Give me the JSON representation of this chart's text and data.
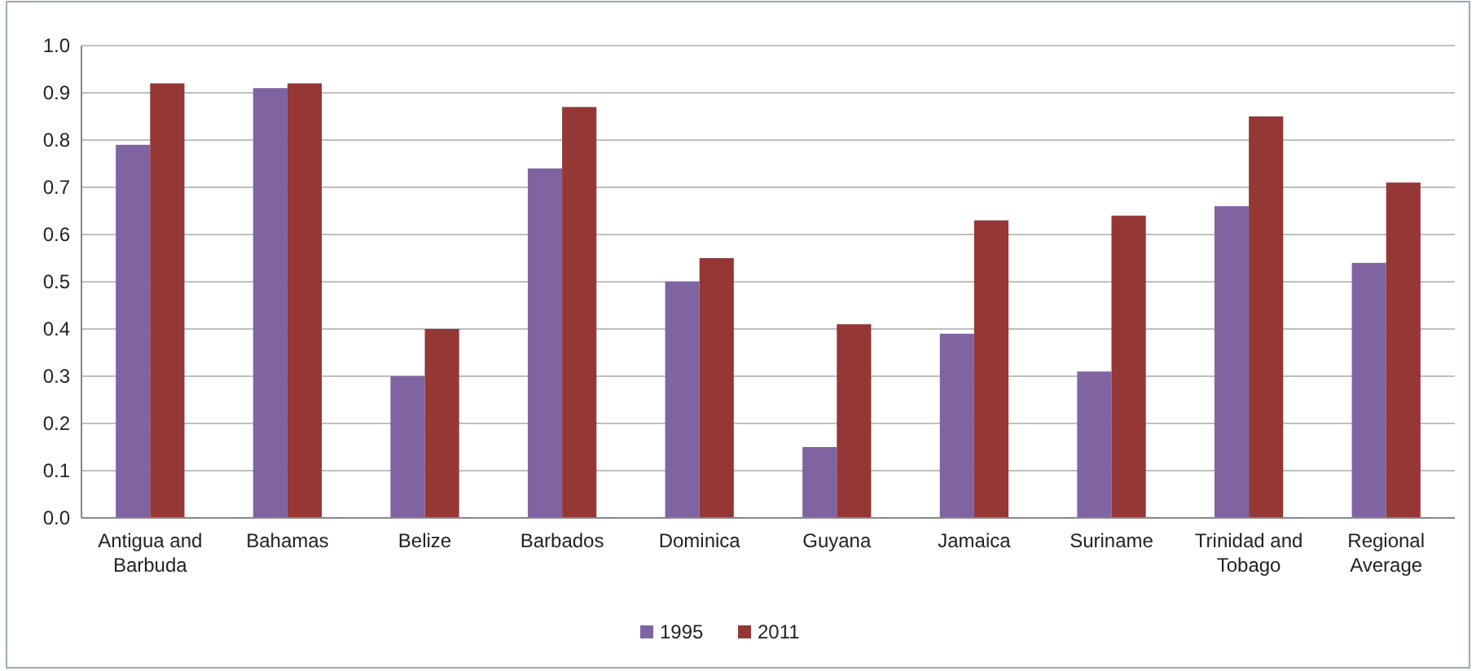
{
  "chart_data": {
    "type": "bar",
    "categories": [
      "Antigua and Barbuda",
      "Bahamas",
      "Belize",
      "Barbados",
      "Dominica",
      "Guyana",
      "Jamaica",
      "Suriname",
      "Trinidad and Tobago",
      "Regional Average"
    ],
    "series": [
      {
        "name": "1995",
        "color": "#8064a2",
        "values": [
          0.79,
          0.91,
          0.3,
          0.74,
          0.5,
          0.15,
          0.39,
          0.31,
          0.66,
          0.54
        ]
      },
      {
        "name": "2011",
        "color": "#953735",
        "values": [
          0.92,
          0.92,
          0.4,
          0.87,
          0.55,
          0.41,
          0.63,
          0.64,
          0.85,
          0.71
        ]
      }
    ],
    "ylim": [
      0,
      1
    ],
    "yticks": [
      {
        "value": 0,
        "label": "0.0"
      },
      {
        "value": 0.1,
        "label": "0.1"
      },
      {
        "value": 0.2,
        "label": "0.2"
      },
      {
        "value": 0.3,
        "label": "0.3"
      },
      {
        "value": 0.4,
        "label": "0.4"
      },
      {
        "value": 0.5,
        "label": "0.5"
      },
      {
        "value": 0.6,
        "label": "0.6"
      },
      {
        "value": 0.7,
        "label": "0.7"
      },
      {
        "value": 0.8,
        "label": "0.8"
      },
      {
        "value": 0.9,
        "label": "0.9"
      },
      {
        "value": 1,
        "label": "1.0"
      }
    ],
    "grid": "y",
    "legend": "bottom"
  }
}
